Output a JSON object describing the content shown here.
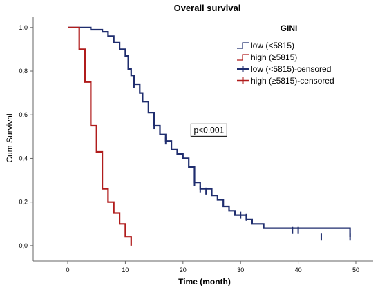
{
  "chart_data": {
    "type": "line",
    "title": "Overall survival",
    "xlabel": "Time (month)",
    "ylabel": "Cum Survival",
    "xlim": [
      -6,
      53
    ],
    "ylim": [
      -0.07,
      1.05
    ],
    "x_ticks": [
      0,
      10,
      20,
      30,
      40,
      50
    ],
    "y_ticks": [
      0.0,
      0.2,
      0.4,
      0.6,
      0.8,
      1.0
    ],
    "y_tick_labels": [
      "0,0",
      "0,2",
      "0,4",
      "0,6",
      "0,8",
      "1,0"
    ],
    "grid": false,
    "legend": {
      "title": "GINI",
      "placement": "top-right",
      "entries": [
        {
          "label": "low (<5815)",
          "series": "low",
          "style": "line"
        },
        {
          "label": "high (≥5815)",
          "series": "high",
          "style": "line"
        },
        {
          "label": "low (<5815)-censored",
          "series": "low",
          "style": "censor"
        },
        {
          "label": "high (≥5815)-censored",
          "series": "high",
          "style": "censor"
        }
      ]
    },
    "annotations": [
      {
        "text": "p<0.001",
        "x": 24.5,
        "y": 0.53
      }
    ],
    "series": [
      {
        "key": "low",
        "color": "#1f2d6e",
        "points": [
          [
            0,
            1.0
          ],
          [
            4,
            1.0
          ],
          [
            4,
            0.99
          ],
          [
            6,
            0.99
          ],
          [
            6,
            0.98
          ],
          [
            7,
            0.98
          ],
          [
            7,
            0.96
          ],
          [
            8,
            0.96
          ],
          [
            8,
            0.93
          ],
          [
            9,
            0.93
          ],
          [
            9,
            0.9
          ],
          [
            10,
            0.9
          ],
          [
            10,
            0.87
          ],
          [
            10.5,
            0.87
          ],
          [
            10.5,
            0.81
          ],
          [
            11,
            0.81
          ],
          [
            11,
            0.78
          ],
          [
            11.5,
            0.78
          ],
          [
            11.5,
            0.74
          ],
          [
            12.5,
            0.74
          ],
          [
            12.5,
            0.7
          ],
          [
            13,
            0.7
          ],
          [
            13,
            0.66
          ],
          [
            14,
            0.66
          ],
          [
            14,
            0.61
          ],
          [
            15,
            0.61
          ],
          [
            15,
            0.55
          ],
          [
            16,
            0.55
          ],
          [
            16,
            0.51
          ],
          [
            17,
            0.51
          ],
          [
            17,
            0.48
          ],
          [
            18,
            0.48
          ],
          [
            18,
            0.44
          ],
          [
            19,
            0.44
          ],
          [
            19,
            0.42
          ],
          [
            20,
            0.42
          ],
          [
            20,
            0.4
          ],
          [
            21,
            0.4
          ],
          [
            21,
            0.36
          ],
          [
            22,
            0.36
          ],
          [
            22,
            0.29
          ],
          [
            23,
            0.29
          ],
          [
            23,
            0.26
          ],
          [
            25,
            0.26
          ],
          [
            25,
            0.23
          ],
          [
            26,
            0.23
          ],
          [
            26,
            0.21
          ],
          [
            27,
            0.21
          ],
          [
            27,
            0.18
          ],
          [
            28,
            0.18
          ],
          [
            28,
            0.16
          ],
          [
            29,
            0.16
          ],
          [
            29,
            0.14
          ],
          [
            31,
            0.14
          ],
          [
            31,
            0.12
          ],
          [
            32,
            0.12
          ],
          [
            32,
            0.1
          ],
          [
            34,
            0.1
          ],
          [
            34,
            0.08
          ],
          [
            49,
            0.08
          ],
          [
            49,
            0.04
          ]
        ],
        "censored": [
          [
            11.5,
            0.74
          ],
          [
            15,
            0.55
          ],
          [
            17,
            0.48
          ],
          [
            22,
            0.29
          ],
          [
            23,
            0.26
          ],
          [
            24,
            0.25
          ],
          [
            30,
            0.14
          ],
          [
            31,
            0.13
          ],
          [
            39,
            0.07
          ],
          [
            40,
            0.07
          ],
          [
            44,
            0.04
          ],
          [
            49,
            0.04
          ]
        ]
      },
      {
        "key": "high",
        "color": "#b01c1c",
        "points": [
          [
            0,
            1.0
          ],
          [
            2,
            1.0
          ],
          [
            2,
            0.9
          ],
          [
            3,
            0.9
          ],
          [
            3,
            0.75
          ],
          [
            4,
            0.75
          ],
          [
            4,
            0.55
          ],
          [
            5,
            0.55
          ],
          [
            5,
            0.43
          ],
          [
            6,
            0.43
          ],
          [
            6,
            0.26
          ],
          [
            7,
            0.26
          ],
          [
            7,
            0.2
          ],
          [
            8,
            0.2
          ],
          [
            8,
            0.15
          ],
          [
            9,
            0.15
          ],
          [
            9,
            0.1
          ],
          [
            10,
            0.1
          ],
          [
            10,
            0.04
          ],
          [
            11,
            0.04
          ],
          [
            11,
            0.0
          ]
        ],
        "censored": []
      }
    ]
  }
}
